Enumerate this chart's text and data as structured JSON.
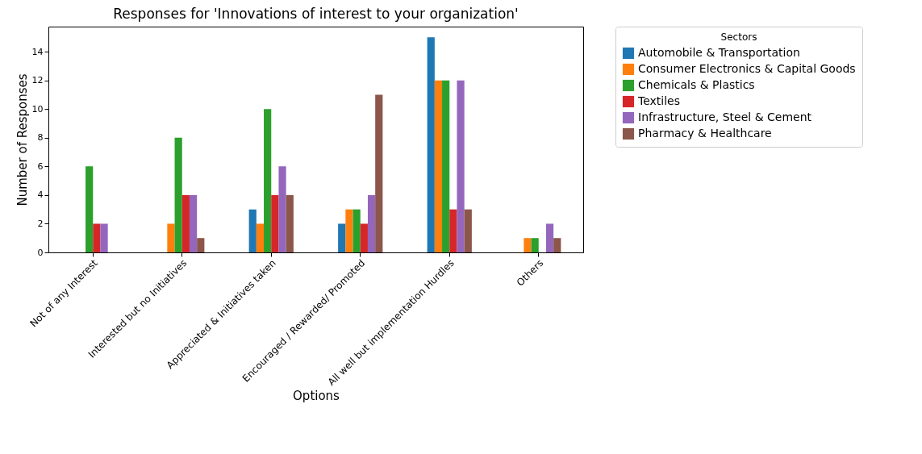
{
  "chart_data": {
    "type": "bar",
    "title": "Responses for 'Innovations of interest to your organization'",
    "xlabel": "Options",
    "ylabel": "Number of Responses",
    "legend_title": "Sectors",
    "legend": "right",
    "grid": false,
    "categories": [
      "Not of any Interest",
      "Interested but no Initiatives",
      "Appreciated & Initiatives taken",
      "Encouraged / Rewarded/ Promoted",
      "All well but implementation Hurdles",
      "Others"
    ],
    "ylim": [
      0,
      15.75
    ],
    "yticks": [
      0,
      2,
      4,
      6,
      8,
      10,
      12,
      14
    ],
    "series": [
      {
        "name": "Automobile & Transportation",
        "color": "#1f77b4",
        "values": [
          0,
          0,
          3,
          2,
          15,
          0
        ]
      },
      {
        "name": "Consumer Electronics & Capital Goods",
        "color": "#ff7f0e",
        "values": [
          0,
          2,
          2,
          3,
          12,
          1
        ]
      },
      {
        "name": "Chemicals & Plastics",
        "color": "#2ca02c",
        "values": [
          6,
          8,
          10,
          3,
          12,
          1
        ]
      },
      {
        "name": "Textiles",
        "color": "#d62728",
        "values": [
          2,
          4,
          4,
          2,
          3,
          0
        ]
      },
      {
        "name": "Infrastructure, Steel & Cement",
        "color": "#9467bd",
        "values": [
          2,
          4,
          6,
          4,
          12,
          2
        ]
      },
      {
        "name": "Pharmacy & Healthcare",
        "color": "#8c564b",
        "values": [
          0,
          1,
          4,
          11,
          3,
          1
        ]
      }
    ]
  }
}
